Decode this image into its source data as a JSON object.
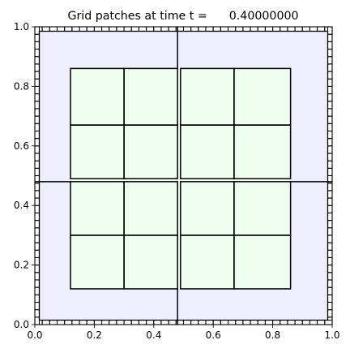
{
  "chart_data": {
    "type": "grid-patches",
    "title": "Grid patches at time t =      0.40000000",
    "xlim": [
      0.0,
      1.0
    ],
    "ylim": [
      0.0,
      1.0
    ],
    "x_tick_values": [
      0.0,
      0.2,
      0.4,
      0.6,
      0.8,
      1.0
    ],
    "y_tick_values": [
      0.0,
      0.2,
      0.4,
      0.6,
      0.8,
      1.0
    ],
    "x_tick_labels": [
      "0.0",
      "0.2",
      "0.4",
      "0.6",
      "0.8",
      "1.0"
    ],
    "y_tick_labels": [
      "0.0",
      "0.2",
      "0.4",
      "0.6",
      "0.8",
      "1.0"
    ],
    "level0": {
      "xlim": [
        0.0,
        1.0
      ],
      "ylim": [
        0.0,
        1.0
      ],
      "split_x": 0.48,
      "split_y": 0.48,
      "fill": "#eeeeff"
    },
    "boundary": {
      "inner_margin": 0.015,
      "cells": 40
    },
    "level1": {
      "xlim": [
        0.12,
        0.86
      ],
      "ylim": [
        0.12,
        0.86
      ],
      "fill": "#efffef",
      "patches": [
        {
          "x": [
            0.12,
            0.3
          ],
          "y": [
            0.12,
            0.3
          ]
        },
        {
          "x": [
            0.3,
            0.48
          ],
          "y": [
            0.12,
            0.3
          ]
        },
        {
          "x": [
            0.49,
            0.67
          ],
          "y": [
            0.12,
            0.3
          ]
        },
        {
          "x": [
            0.67,
            0.86
          ],
          "y": [
            0.12,
            0.3
          ]
        },
        {
          "x": [
            0.12,
            0.3
          ],
          "y": [
            0.3,
            0.48
          ]
        },
        {
          "x": [
            0.3,
            0.48
          ],
          "y": [
            0.3,
            0.48
          ]
        },
        {
          "x": [
            0.49,
            0.67
          ],
          "y": [
            0.3,
            0.48
          ]
        },
        {
          "x": [
            0.67,
            0.86
          ],
          "y": [
            0.3,
            0.48
          ]
        },
        {
          "x": [
            0.12,
            0.3
          ],
          "y": [
            0.49,
            0.67
          ]
        },
        {
          "x": [
            0.3,
            0.48
          ],
          "y": [
            0.49,
            0.67
          ]
        },
        {
          "x": [
            0.49,
            0.67
          ],
          "y": [
            0.49,
            0.67
          ]
        },
        {
          "x": [
            0.67,
            0.86
          ],
          "y": [
            0.49,
            0.67
          ]
        },
        {
          "x": [
            0.12,
            0.3
          ],
          "y": [
            0.67,
            0.86
          ]
        },
        {
          "x": [
            0.3,
            0.48
          ],
          "y": [
            0.67,
            0.86
          ]
        },
        {
          "x": [
            0.49,
            0.67
          ],
          "y": [
            0.67,
            0.86
          ]
        },
        {
          "x": [
            0.67,
            0.86
          ],
          "y": [
            0.67,
            0.86
          ]
        }
      ]
    },
    "colors": {
      "background": "#ffffff",
      "outer_fill": "#eeeeff",
      "inner_fill": "#efffef",
      "lines": "#000000"
    }
  }
}
